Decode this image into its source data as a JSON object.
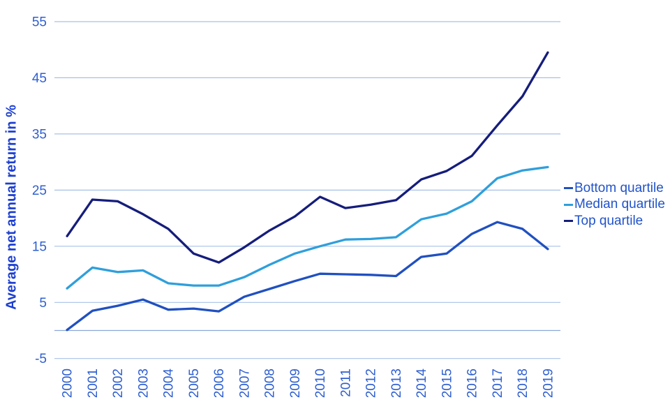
{
  "chart_data": {
    "type": "line",
    "title": "",
    "xlabel": "",
    "ylabel": "Average net annual return in %",
    "categories": [
      "2000",
      "2001",
      "2002",
      "2003",
      "2004",
      "2005",
      "2006",
      "2007",
      "2008",
      "2009",
      "2010",
      "2011",
      "2012",
      "2013",
      "2014",
      "2015",
      "2016",
      "2017",
      "2018",
      "2019"
    ],
    "ylim": [
      -5,
      55
    ],
    "yticks": [
      55,
      45,
      35,
      25,
      15,
      5,
      -5
    ],
    "gridlines": [
      55,
      45,
      35,
      25,
      15,
      5,
      0,
      -5
    ],
    "grid": true,
    "legend_position": "right",
    "series": [
      {
        "name": "Bottom quartile",
        "color": "#2050c0",
        "values": [
          0.1,
          3.5,
          4.4,
          5.5,
          3.7,
          3.9,
          3.4,
          6.0,
          7.4,
          8.8,
          10.1,
          10.0,
          9.9,
          9.7,
          13.1,
          13.7,
          17.2,
          19.3,
          18.1,
          14.5
        ]
      },
      {
        "name": "Median quartile",
        "color": "#2f9fdb",
        "values": [
          7.5,
          11.2,
          10.4,
          10.7,
          8.4,
          8.0,
          8.0,
          9.5,
          11.7,
          13.7,
          15.0,
          16.2,
          16.3,
          16.6,
          19.8,
          20.8,
          23.0,
          27.1,
          28.5,
          29.1
        ]
      },
      {
        "name": "Top quartile",
        "color": "#151d7b",
        "values": [
          16.8,
          23.3,
          23.0,
          20.7,
          18.1,
          13.7,
          12.1,
          14.8,
          17.8,
          20.3,
          23.8,
          21.8,
          22.4,
          23.2,
          26.9,
          28.4,
          31.1,
          36.5,
          41.7,
          49.5
        ]
      }
    ]
  },
  "colors": {
    "background": "#ffffff",
    "gridline": "#a7c0e7",
    "zero_line": "#8aa6d8",
    "tick_text": "#2e5fd1",
    "legend_text": "#2053ca",
    "axis_title": "#1c3fd0"
  }
}
